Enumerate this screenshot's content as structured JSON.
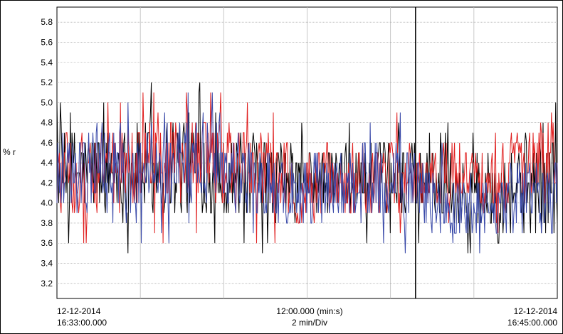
{
  "chart_data": {
    "type": "line",
    "ylabel": "% r",
    "ylim": [
      3.05,
      5.95
    ],
    "yticks": [
      "3.2",
      "3.4",
      "3.6",
      "3.8",
      "4.0",
      "4.2",
      "4.4",
      "4.6",
      "4.8",
      "5.0",
      "5.2",
      "5.4",
      "5.6",
      "5.8"
    ],
    "grid": true,
    "x_start_label": [
      "12-12-2014",
      "16:33:00.000"
    ],
    "x_mid_label": [
      "12:00.000 (min:s)",
      "2 min/Div"
    ],
    "x_end_label": [
      "12-12-2014",
      "16:45:00.000"
    ],
    "x_range_minutes": [
      0,
      12
    ],
    "cursor_minutes": 8.6,
    "series": [
      {
        "color": "#000000",
        "base": [
          4.3,
          4.3,
          4.35,
          4.4,
          4.3,
          4.2,
          4.2,
          4.2,
          4.25,
          4.2,
          4.1,
          4.2,
          4.2
        ],
        "amplitude": [
          0.35,
          0.35,
          0.4,
          0.45,
          0.35,
          0.35,
          0.3,
          0.3,
          0.3,
          0.3,
          0.3,
          0.45,
          0.45
        ],
        "min": 3.4,
        "max": 5.3
      },
      {
        "color": "#e02020",
        "base": [
          4.25,
          4.3,
          4.35,
          4.4,
          4.35,
          4.3,
          4.15,
          4.25,
          4.25,
          4.3,
          4.3,
          4.3,
          4.5
        ],
        "amplitude": [
          0.3,
          0.35,
          0.4,
          0.4,
          0.35,
          0.35,
          0.3,
          0.3,
          0.3,
          0.25,
          0.3,
          0.3,
          0.4
        ],
        "min": 3.5,
        "max": 5.4
      },
      {
        "color": "#3848a8",
        "base": [
          4.3,
          4.3,
          4.3,
          4.5,
          4.4,
          4.2,
          4.1,
          4.15,
          4.3,
          4.0,
          3.95,
          4.05,
          4.05
        ],
        "amplitude": [
          0.35,
          0.4,
          0.4,
          0.4,
          0.35,
          0.3,
          0.3,
          0.3,
          0.35,
          0.3,
          0.25,
          0.3,
          0.3
        ],
        "min": 3.4,
        "max": 5.1
      }
    ]
  }
}
